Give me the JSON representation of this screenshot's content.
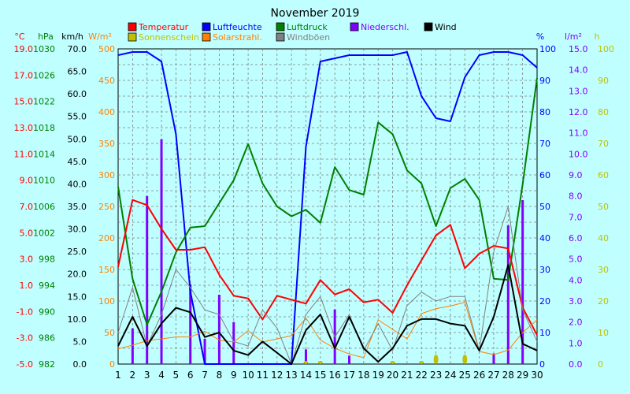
{
  "chart_data": {
    "type": "line",
    "title": "November 2019",
    "x": [
      1,
      2,
      3,
      4,
      5,
      6,
      7,
      8,
      9,
      10,
      11,
      12,
      13,
      14,
      15,
      16,
      17,
      18,
      19,
      20,
      21,
      22,
      23,
      24,
      25,
      26,
      27,
      28,
      29,
      30
    ],
    "x_ticks": [
      "1",
      "2",
      "3",
      "4",
      "5",
      "6",
      "7",
      "8",
      "9",
      "10",
      "11",
      "12",
      "13",
      "14",
      "15",
      "16",
      "17",
      "18",
      "19",
      "20",
      "21",
      "22",
      "23",
      "24",
      "25",
      "26",
      "27",
      "28",
      "29",
      "30"
    ],
    "grid": true,
    "axes": [
      {
        "id": "temp",
        "label": "°C",
        "color": "#ff0000",
        "min": -5,
        "max": 19,
        "ticks": [
          "-5.0",
          "-3.0",
          "-1.0",
          "1.0",
          "3.0",
          "5.0",
          "7.0",
          "9.0",
          "11.0",
          "13.0",
          "15.0",
          "17.0",
          "19.0"
        ]
      },
      {
        "id": "press",
        "label": "hPa",
        "color": "#008000",
        "min": 982,
        "max": 1030,
        "ticks": [
          "982",
          "986",
          "990",
          "994",
          "998",
          "1002",
          "1006",
          "1010",
          "1014",
          "1018",
          "1022",
          "1026",
          "1030"
        ]
      },
      {
        "id": "wind",
        "label": "km/h",
        "color": "#000000",
        "min": 0,
        "max": 70,
        "ticks": [
          "0.0",
          "5.0",
          "10.0",
          "15.0",
          "20.0",
          "25.0",
          "30.0",
          "35.0",
          "40.0",
          "45.0",
          "50.0",
          "55.0",
          "60.0",
          "65.0",
          "70.0"
        ]
      },
      {
        "id": "solar",
        "label": "W/m²",
        "color": "#ff8000",
        "min": 0,
        "max": 500,
        "ticks": [
          "0",
          "50",
          "100",
          "150",
          "200",
          "250",
          "300",
          "350",
          "400",
          "450",
          "500"
        ]
      },
      {
        "id": "hum",
        "label": "%",
        "color": "#0000ff",
        "min": 0,
        "max": 100,
        "ticks": [
          "0",
          "10",
          "20",
          "30",
          "40",
          "50",
          "60",
          "70",
          "80",
          "90",
          "100"
        ]
      },
      {
        "id": "rain",
        "label": "l/m²",
        "color": "#8000ff",
        "min": 0,
        "max": 15,
        "ticks": [
          "0.0",
          "1.0",
          "2.0",
          "3.0",
          "4.0",
          "5.0",
          "6.0",
          "7.0",
          "8.0",
          "9.0",
          "10.0",
          "11.0",
          "12.0",
          "13.0",
          "14.0",
          "15.0"
        ]
      },
      {
        "id": "sun",
        "label": "h",
        "color": "#c0c000",
        "min": 0,
        "max": 100,
        "ticks": [
          "0",
          "10",
          "20",
          "30",
          "40",
          "50",
          "60",
          "70",
          "80",
          "90",
          "100"
        ]
      }
    ],
    "legend": [
      {
        "name": "Temperatur",
        "color": "#ff0000"
      },
      {
        "name": "Luftfeuchte",
        "color": "#0000ff"
      },
      {
        "name": "Luftdruck",
        "color": "#008000"
      },
      {
        "name": "Niederschl.",
        "color": "#8000ff"
      },
      {
        "name": "Wind",
        "color": "#000000"
      },
      {
        "name": "Sonnenschein",
        "color": "#c0c000"
      },
      {
        "name": "Solarstrahl.",
        "color": "#ff8000"
      },
      {
        "name": "Windböen",
        "color": "#808080"
      }
    ],
    "series": [
      {
        "name": "Luftfeuchte",
        "axis": "hum",
        "type": "line",
        "color": "#0000ff",
        "values": [
          98,
          99,
          99,
          96,
          73,
          23,
          0,
          0,
          0,
          0,
          0,
          0,
          0,
          69,
          96,
          97,
          98,
          98,
          98,
          98,
          99,
          85,
          78,
          77,
          91,
          98,
          99,
          99,
          98,
          94
        ]
      },
      {
        "name": "Luftdruck",
        "axis": "press",
        "type": "line",
        "color": "#008000",
        "values": [
          1009,
          995,
          988,
          993,
          999,
          1002.8,
          1003,
          1006.5,
          1010,
          1015.5,
          1009.5,
          1006,
          1004.5,
          1005.5,
          1003.5,
          1012,
          1008.5,
          1007.8,
          1018.8,
          1017,
          1011.5,
          1009.5,
          1003,
          1008.8,
          1010.2,
          1007,
          995,
          994.8,
          1009.4,
          1025.6
        ]
      },
      {
        "name": "Temperatur",
        "axis": "temp",
        "type": "line",
        "color": "#ff0000",
        "values": [
          2.4,
          7.5,
          7.1,
          5.3,
          3.7,
          3.7,
          3.9,
          1.8,
          0.2,
          0.0,
          -1.6,
          0.2,
          -0.1,
          -0.4,
          1.4,
          0.3,
          0.7,
          -0.3,
          -0.1,
          -1.1,
          1.0,
          2.9,
          4.8,
          5.6,
          2.3,
          3.4,
          4.0,
          3.8,
          -0.7,
          -2.8
        ]
      },
      {
        "name": "Solarstrahl.",
        "axis": "solar",
        "type": "line",
        "color": "#ff8000",
        "values": [
          24,
          30,
          37,
          40,
          43,
          43,
          52,
          38,
          35,
          53,
          35,
          40,
          45,
          73,
          38,
          25,
          16,
          10,
          70,
          55,
          40,
          80,
          88,
          92,
          98,
          20,
          15,
          22,
          50,
          70
        ]
      },
      {
        "name": "Windböen",
        "axis": "wind",
        "type": "line",
        "color": "#808080",
        "values": [
          7,
          17,
          4,
          11,
          21,
          17,
          12,
          11,
          5,
          4,
          12,
          8,
          0,
          11,
          15,
          6,
          11,
          3,
          9,
          3,
          13,
          16,
          14,
          15,
          15,
          3,
          25,
          35,
          12,
          5
        ]
      },
      {
        "name": "Wind",
        "axis": "wind",
        "type": "line",
        "color": "#000000",
        "values": [
          4,
          10.5,
          4,
          9,
          12.5,
          11.5,
          6,
          7,
          3,
          2,
          5,
          2.5,
          0,
          7.5,
          11,
          3.5,
          10.5,
          3.5,
          0.5,
          3.5,
          8.5,
          10,
          10,
          9,
          8.5,
          3,
          10.5,
          22,
          4.5,
          3
        ]
      },
      {
        "name": "Niederschl.",
        "axis": "rain",
        "type": "bar",
        "color": "#8000ff",
        "values": [
          0,
          1.7,
          8.0,
          10.7,
          0,
          3.8,
          1.2,
          3.3,
          2.0,
          0,
          0,
          0,
          0,
          0.7,
          0,
          2.6,
          0.4,
          0,
          0,
          0,
          0,
          0,
          0,
          0,
          0,
          0,
          0.5,
          6.6,
          7.8,
          0
        ]
      },
      {
        "name": "Sonnenschein",
        "axis": "sun",
        "type": "bar",
        "color": "#c0c000",
        "values": [
          0,
          0,
          0,
          0,
          0,
          0,
          0,
          0,
          0,
          0,
          0,
          0,
          0,
          0.5,
          0.5,
          0,
          0,
          0,
          0,
          0.5,
          0,
          0.5,
          1.5,
          0,
          1.5,
          0,
          0,
          0,
          0,
          0
        ]
      }
    ]
  }
}
